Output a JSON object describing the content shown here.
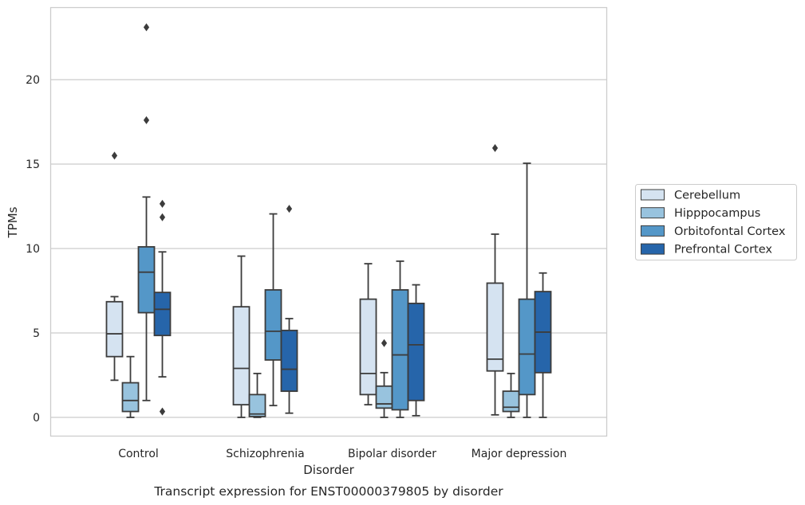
{
  "chart_data": {
    "type": "box",
    "xlabel": "Disorder",
    "ylabel": "TPMs",
    "caption": "Transcript expression for ENST00000379805 by disorder",
    "ylim": [
      -1.1,
      24.2
    ],
    "yticks": [
      0,
      5,
      10,
      15,
      20
    ],
    "grid": "horizontal",
    "legend_position": "right",
    "categories": [
      "Control",
      "Schizophrenia",
      "Bipolar disorder",
      "Major depression"
    ],
    "series": [
      {
        "name": "Cerebellum",
        "color": "#d5e3f1",
        "boxes": [
          {
            "whislo": 2.2,
            "q1": 3.6,
            "med": 4.95,
            "q3": 6.85,
            "whishi": 7.15,
            "fliers": [
              15.5
            ]
          },
          {
            "whislo": 0.0,
            "q1": 0.75,
            "med": 2.9,
            "q3": 6.55,
            "whishi": 9.55,
            "fliers": []
          },
          {
            "whislo": 0.75,
            "q1": 1.35,
            "med": 2.6,
            "q3": 7.0,
            "whishi": 9.1,
            "fliers": []
          },
          {
            "whislo": 0.15,
            "q1": 2.75,
            "med": 3.45,
            "q3": 7.95,
            "whishi": 10.85,
            "fliers": [
              15.95
            ]
          }
        ]
      },
      {
        "name": "Hipppocampus",
        "color": "#98c3de",
        "boxes": [
          {
            "whislo": 0.0,
            "q1": 0.35,
            "med": 1.0,
            "q3": 2.05,
            "whishi": 3.6,
            "fliers": []
          },
          {
            "whislo": 0.0,
            "q1": 0.05,
            "med": 0.2,
            "q3": 1.35,
            "whishi": 2.6,
            "fliers": []
          },
          {
            "whislo": 0.0,
            "q1": 0.55,
            "med": 0.8,
            "q3": 1.85,
            "whishi": 2.65,
            "fliers": [
              4.4
            ]
          },
          {
            "whislo": 0.0,
            "q1": 0.35,
            "med": 0.6,
            "q3": 1.55,
            "whishi": 2.6,
            "fliers": []
          }
        ]
      },
      {
        "name": "Orbitofontal Cortex",
        "color": "#5497c8",
        "boxes": [
          {
            "whislo": 1.0,
            "q1": 6.2,
            "med": 8.6,
            "q3": 10.1,
            "whishi": 13.05,
            "fliers": [
              17.6,
              23.1
            ]
          },
          {
            "whislo": 0.7,
            "q1": 3.4,
            "med": 5.1,
            "q3": 7.55,
            "whishi": 12.05,
            "fliers": []
          },
          {
            "whislo": 0.0,
            "q1": 0.45,
            "med": 3.7,
            "q3": 7.55,
            "whishi": 9.25,
            "fliers": []
          },
          {
            "whislo": 0.0,
            "q1": 1.35,
            "med": 3.75,
            "q3": 7.0,
            "whishi": 15.05,
            "fliers": []
          }
        ]
      },
      {
        "name": "Prefrontal Cortex",
        "color": "#2665aa",
        "boxes": [
          {
            "whislo": 2.4,
            "q1": 4.85,
            "med": 6.4,
            "q3": 7.4,
            "whishi": 9.8,
            "fliers": [
              0.35,
              11.85,
              12.65
            ]
          },
          {
            "whislo": 0.25,
            "q1": 1.55,
            "med": 2.85,
            "q3": 5.15,
            "whishi": 5.85,
            "fliers": [
              12.35
            ]
          },
          {
            "whislo": 0.1,
            "q1": 1.0,
            "med": 4.3,
            "q3": 6.75,
            "whishi": 7.85,
            "fliers": []
          },
          {
            "whislo": 0.0,
            "q1": 2.65,
            "med": 5.05,
            "q3": 7.45,
            "whishi": 8.55,
            "fliers": []
          }
        ]
      }
    ]
  }
}
